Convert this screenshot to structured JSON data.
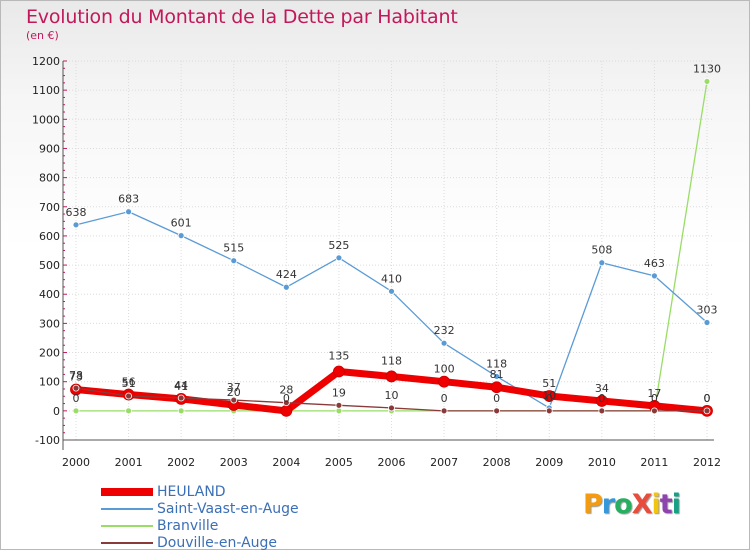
{
  "title": "Evolution du Montant de la Dette par Habitant",
  "subtitle": "(en €)",
  "logo": {
    "text": "ProXiti",
    "colors": [
      "#f39c12",
      "#3498db",
      "#27ae60",
      "#e74c3c",
      "#f1c40f",
      "#8e44ad",
      "#16a085"
    ]
  },
  "chart_data": {
    "type": "line",
    "title": "Evolution du Montant de la Dette par Habitant",
    "ylabel": "(en €)",
    "xlabel": "",
    "x": [
      "2000",
      "2001",
      "2002",
      "2003",
      "2004",
      "2005",
      "2006",
      "2007",
      "2008",
      "2009",
      "2010",
      "2011",
      "2012"
    ],
    "ylim": [
      -100,
      1200
    ],
    "yticks": [
      "-100",
      "0",
      "100",
      "200",
      "300",
      "400",
      "500",
      "600",
      "700",
      "800",
      "900",
      "1000",
      "1100",
      "1200"
    ],
    "legend_position": "bottom-left",
    "series": [
      {
        "name": "HEULAND",
        "color": "#ee0000",
        "values": [
          73,
          56,
          41,
          20,
          0,
          135,
          118,
          100,
          81,
          51,
          34,
          17,
          0
        ],
        "labels": [
          "73",
          "56",
          "41",
          "20",
          "",
          "135",
          "118",
          "100",
          "81",
          "51",
          "34",
          "17",
          "0"
        ]
      },
      {
        "name": "Saint-Vaast-en-Auge",
        "color": "#5b9bd5",
        "values": [
          638,
          683,
          601,
          515,
          424,
          525,
          410,
          232,
          118,
          10,
          508,
          463,
          303
        ],
        "labels": [
          "638",
          "683",
          "601",
          "515",
          "424",
          "525",
          "410",
          "232",
          "118",
          "10",
          "508",
          "463",
          "303"
        ]
      },
      {
        "name": "Branville",
        "color": "#99dd66",
        "values": [
          0,
          0,
          0,
          0,
          0,
          0,
          0,
          0,
          0,
          0,
          0,
          0,
          1130
        ],
        "labels": [
          "0",
          "",
          "",
          "",
          "0",
          "",
          "",
          "",
          "",
          "",
          "",
          "",
          "1130"
        ]
      },
      {
        "name": "Douville-en-Auge",
        "color": "#8b3a3a",
        "values": [
          78,
          51,
          44,
          37,
          28,
          19,
          10,
          0,
          0,
          0,
          0,
          0,
          0
        ],
        "labels": [
          "78",
          "51",
          "44",
          "37",
          "28",
          "19",
          "10",
          "0",
          "0",
          "0",
          "0",
          "0",
          "0"
        ]
      }
    ]
  }
}
